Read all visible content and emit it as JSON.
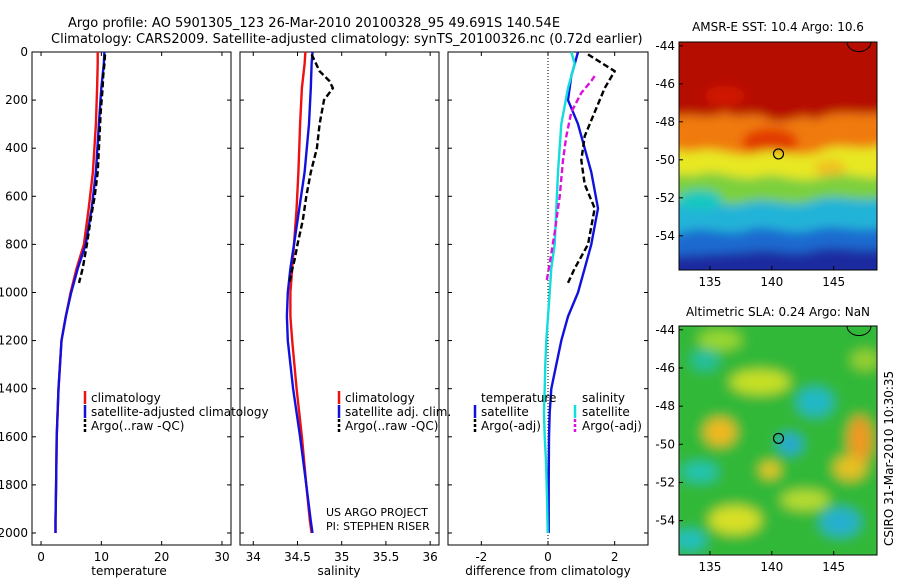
{
  "figure": {
    "title_line1": "Argo profile: AO 5901305_123 26-Mar-2010 20100328_95 49.691S 140.54E",
    "title_line2": "Climatology: CARS2009. Satellite-adjusted climatology: synTS_20100326.nc (0.72d earlier)",
    "side_label": "CSIRO 31-Mar-2010 10:30:35",
    "credit_line1": "US ARGO PROJECT",
    "credit_line2": "PI: STEPHEN RISER"
  },
  "colors": {
    "climatology": "#ee1111",
    "satellite": "#1111dd",
    "argo": "#000000",
    "satellite_salinity": "#11dddd",
    "argo_adj_salinity": "#dd11dd"
  },
  "chart_data": [
    {
      "type": "line",
      "panel": "temperature",
      "xlabel": "temperature",
      "ylabel": "",
      "xlim": [
        -1.5,
        31.5
      ],
      "ylim": [
        2050,
        0
      ],
      "xticks": [
        0,
        10,
        20,
        30
      ],
      "yticks": [
        0,
        200,
        400,
        600,
        800,
        1000,
        1200,
        1400,
        1600,
        1800,
        2000
      ],
      "legend": [
        "climatology",
        "satellite-adjusted climatology",
        "Argo(..raw -QC)"
      ],
      "legend_position": "lower-right",
      "series": [
        {
          "name": "climatology",
          "color_key": "climatology",
          "style": "solid",
          "x": [
            9.4,
            9.4,
            9.3,
            9.1,
            8.6,
            7.9,
            7.1,
            5.9,
            4.9,
            4.1,
            3.4,
            2.9,
            2.6,
            2.5,
            2.4,
            2.4
          ],
          "y": [
            0,
            50,
            150,
            300,
            500,
            650,
            800,
            900,
            1000,
            1100,
            1200,
            1400,
            1600,
            1800,
            1950,
            2000
          ]
        },
        {
          "name": "satellite-adjusted climatology",
          "color_key": "satellite",
          "style": "solid",
          "x": [
            10.5,
            10.4,
            10.0,
            9.6,
            9.1,
            8.4,
            7.4,
            6.1,
            5.0,
            4.1,
            3.4,
            2.9,
            2.6,
            2.5,
            2.4,
            2.4
          ],
          "y": [
            0,
            50,
            150,
            300,
            500,
            650,
            800,
            900,
            1000,
            1100,
            1200,
            1400,
            1600,
            1800,
            1950,
            2000
          ]
        },
        {
          "name": "Argo(..raw -QC)",
          "color_key": "argo",
          "style": "dashed",
          "x": [
            10.6,
            10.5,
            10.3,
            10.2,
            9.9,
            9.6,
            9.4,
            8.9,
            8.2,
            7.6,
            6.9,
            6.3
          ],
          "y": [
            10,
            50,
            100,
            150,
            250,
            400,
            500,
            600,
            700,
            800,
            900,
            960
          ]
        }
      ]
    },
    {
      "type": "line",
      "panel": "salinity",
      "xlabel": "salinity",
      "ylabel": "",
      "xlim": [
        33.85,
        36.1
      ],
      "ylim": [
        2050,
        0
      ],
      "xticks": [
        34,
        34.5,
        35,
        35.5,
        36
      ],
      "yticks": [
        0,
        200,
        400,
        600,
        800,
        1000,
        1200,
        1400,
        1600,
        1800,
        2000
      ],
      "legend": [
        "climatology",
        "satellite adj. clim.",
        "Argo(..raw -QC)"
      ],
      "legend_position": "lower-right",
      "series": [
        {
          "name": "climatology",
          "color_key": "climatology",
          "style": "solid",
          "x": [
            34.59,
            34.58,
            34.55,
            34.53,
            34.51,
            34.49,
            34.46,
            34.44,
            34.42,
            34.42,
            34.44,
            34.49,
            34.55,
            34.6,
            34.64,
            34.66
          ],
          "y": [
            0,
            50,
            150,
            300,
            500,
            650,
            800,
            900,
            1000,
            1100,
            1200,
            1400,
            1600,
            1800,
            1950,
            2000
          ]
        },
        {
          "name": "satellite adj. clim.",
          "color_key": "satellite",
          "style": "solid",
          "x": [
            34.67,
            34.66,
            34.65,
            34.63,
            34.58,
            34.52,
            34.46,
            34.42,
            34.39,
            34.38,
            34.39,
            34.45,
            34.53,
            34.6,
            34.65,
            34.67
          ],
          "y": [
            0,
            50,
            150,
            300,
            500,
            650,
            800,
            900,
            1000,
            1100,
            1200,
            1400,
            1600,
            1800,
            1950,
            2000
          ]
        },
        {
          "name": "Argo(..raw -QC)",
          "color_key": "argo",
          "style": "dashed",
          "x": [
            34.66,
            34.75,
            34.86,
            34.9,
            34.8,
            34.75,
            34.72,
            34.65,
            34.6,
            34.56,
            34.5,
            34.47,
            34.43,
            34.41
          ],
          "y": [
            10,
            80,
            120,
            150,
            200,
            300,
            400,
            500,
            600,
            700,
            800,
            860,
            920,
            960
          ]
        }
      ]
    },
    {
      "type": "line",
      "panel": "difference",
      "xlabel": "difference from climatology",
      "ylabel": "",
      "xlim": [
        -3.0,
        3.0
      ],
      "ylim": [
        2050,
        0
      ],
      "xticks": [
        -2,
        0,
        2
      ],
      "yticks": [
        0,
        200,
        400,
        600,
        800,
        1000,
        1200,
        1400,
        1600,
        1800,
        2000
      ],
      "legend": [
        "temperature",
        "satellite",
        "Argo(-adj)",
        "salinity",
        "satellite",
        "Argo(-adj)"
      ],
      "legend_position": "lower-center",
      "series": [
        {
          "name": "satellite",
          "group": "temperature",
          "color_key": "satellite",
          "style": "solid",
          "x": [
            0.9,
            0.8,
            0.7,
            0.6,
            0.9,
            1.3,
            1.5,
            1.3,
            1.1,
            0.9,
            0.6,
            0.4,
            0.25,
            0.1,
            0.05,
            0.03,
            0.02,
            0.02
          ],
          "y": [
            0,
            50,
            100,
            200,
            300,
            500,
            650,
            800,
            900,
            1000,
            1100,
            1200,
            1300,
            1400,
            1500,
            1600,
            1800,
            2000
          ]
        },
        {
          "name": "Argo(-adj)",
          "group": "temperature",
          "color_key": "argo",
          "style": "dashed",
          "x": [
            1.2,
            2.0,
            1.7,
            1.4,
            1.1,
            1.0,
            1.1,
            1.4,
            1.2,
            0.8,
            0.6
          ],
          "y": [
            10,
            80,
            150,
            250,
            350,
            450,
            550,
            650,
            800,
            900,
            960
          ]
        },
        {
          "name": "satellite",
          "group": "salinity",
          "color_key": "satellite_salinity",
          "style": "solid",
          "x": [
            0.7,
            0.8,
            0.6,
            0.4,
            0.3,
            0.25,
            0.2,
            0.1,
            0.05,
            0.0,
            -0.05,
            -0.08,
            -0.1,
            -0.12,
            -0.1,
            -0.06,
            -0.03,
            -0.01
          ],
          "y": [
            0,
            50,
            150,
            300,
            500,
            650,
            800,
            900,
            1000,
            1100,
            1200,
            1300,
            1400,
            1500,
            1600,
            1700,
            1850,
            2000
          ]
        },
        {
          "name": "Argo(-adj)",
          "group": "salinity",
          "color_key": "argo_adj_salinity",
          "style": "dashed",
          "x": [
            1.4,
            1.3,
            1.0,
            0.7,
            0.55,
            0.45,
            0.35,
            0.2,
            0.05,
            -0.05
          ],
          "y": [
            100,
            120,
            170,
            250,
            350,
            450,
            600,
            750,
            880,
            960
          ]
        }
      ]
    },
    {
      "type": "heatmap",
      "panel": "sst_map",
      "title": "AMSR-E SST: 10.4 Argo: 10.6",
      "xlim": [
        132.5,
        148.5
      ],
      "ylim": [
        -55.8,
        -43.8
      ],
      "xticks": [
        135,
        140,
        145
      ],
      "yticks": [
        -44,
        -46,
        -48,
        -50,
        -52,
        -54
      ],
      "marker": {
        "lon": 140.54,
        "lat": -49.691
      }
    },
    {
      "type": "heatmap",
      "panel": "sla_map",
      "title": "Altimetric SLA: 0.24 Argo: NaN",
      "xlim": [
        132.5,
        148.5
      ],
      "ylim": [
        -55.8,
        -43.8
      ],
      "xticks": [
        135,
        140,
        145
      ],
      "yticks": [
        -44,
        -46,
        -48,
        -50,
        -52,
        -54
      ],
      "marker": {
        "lon": 140.54,
        "lat": -49.691
      }
    }
  ]
}
